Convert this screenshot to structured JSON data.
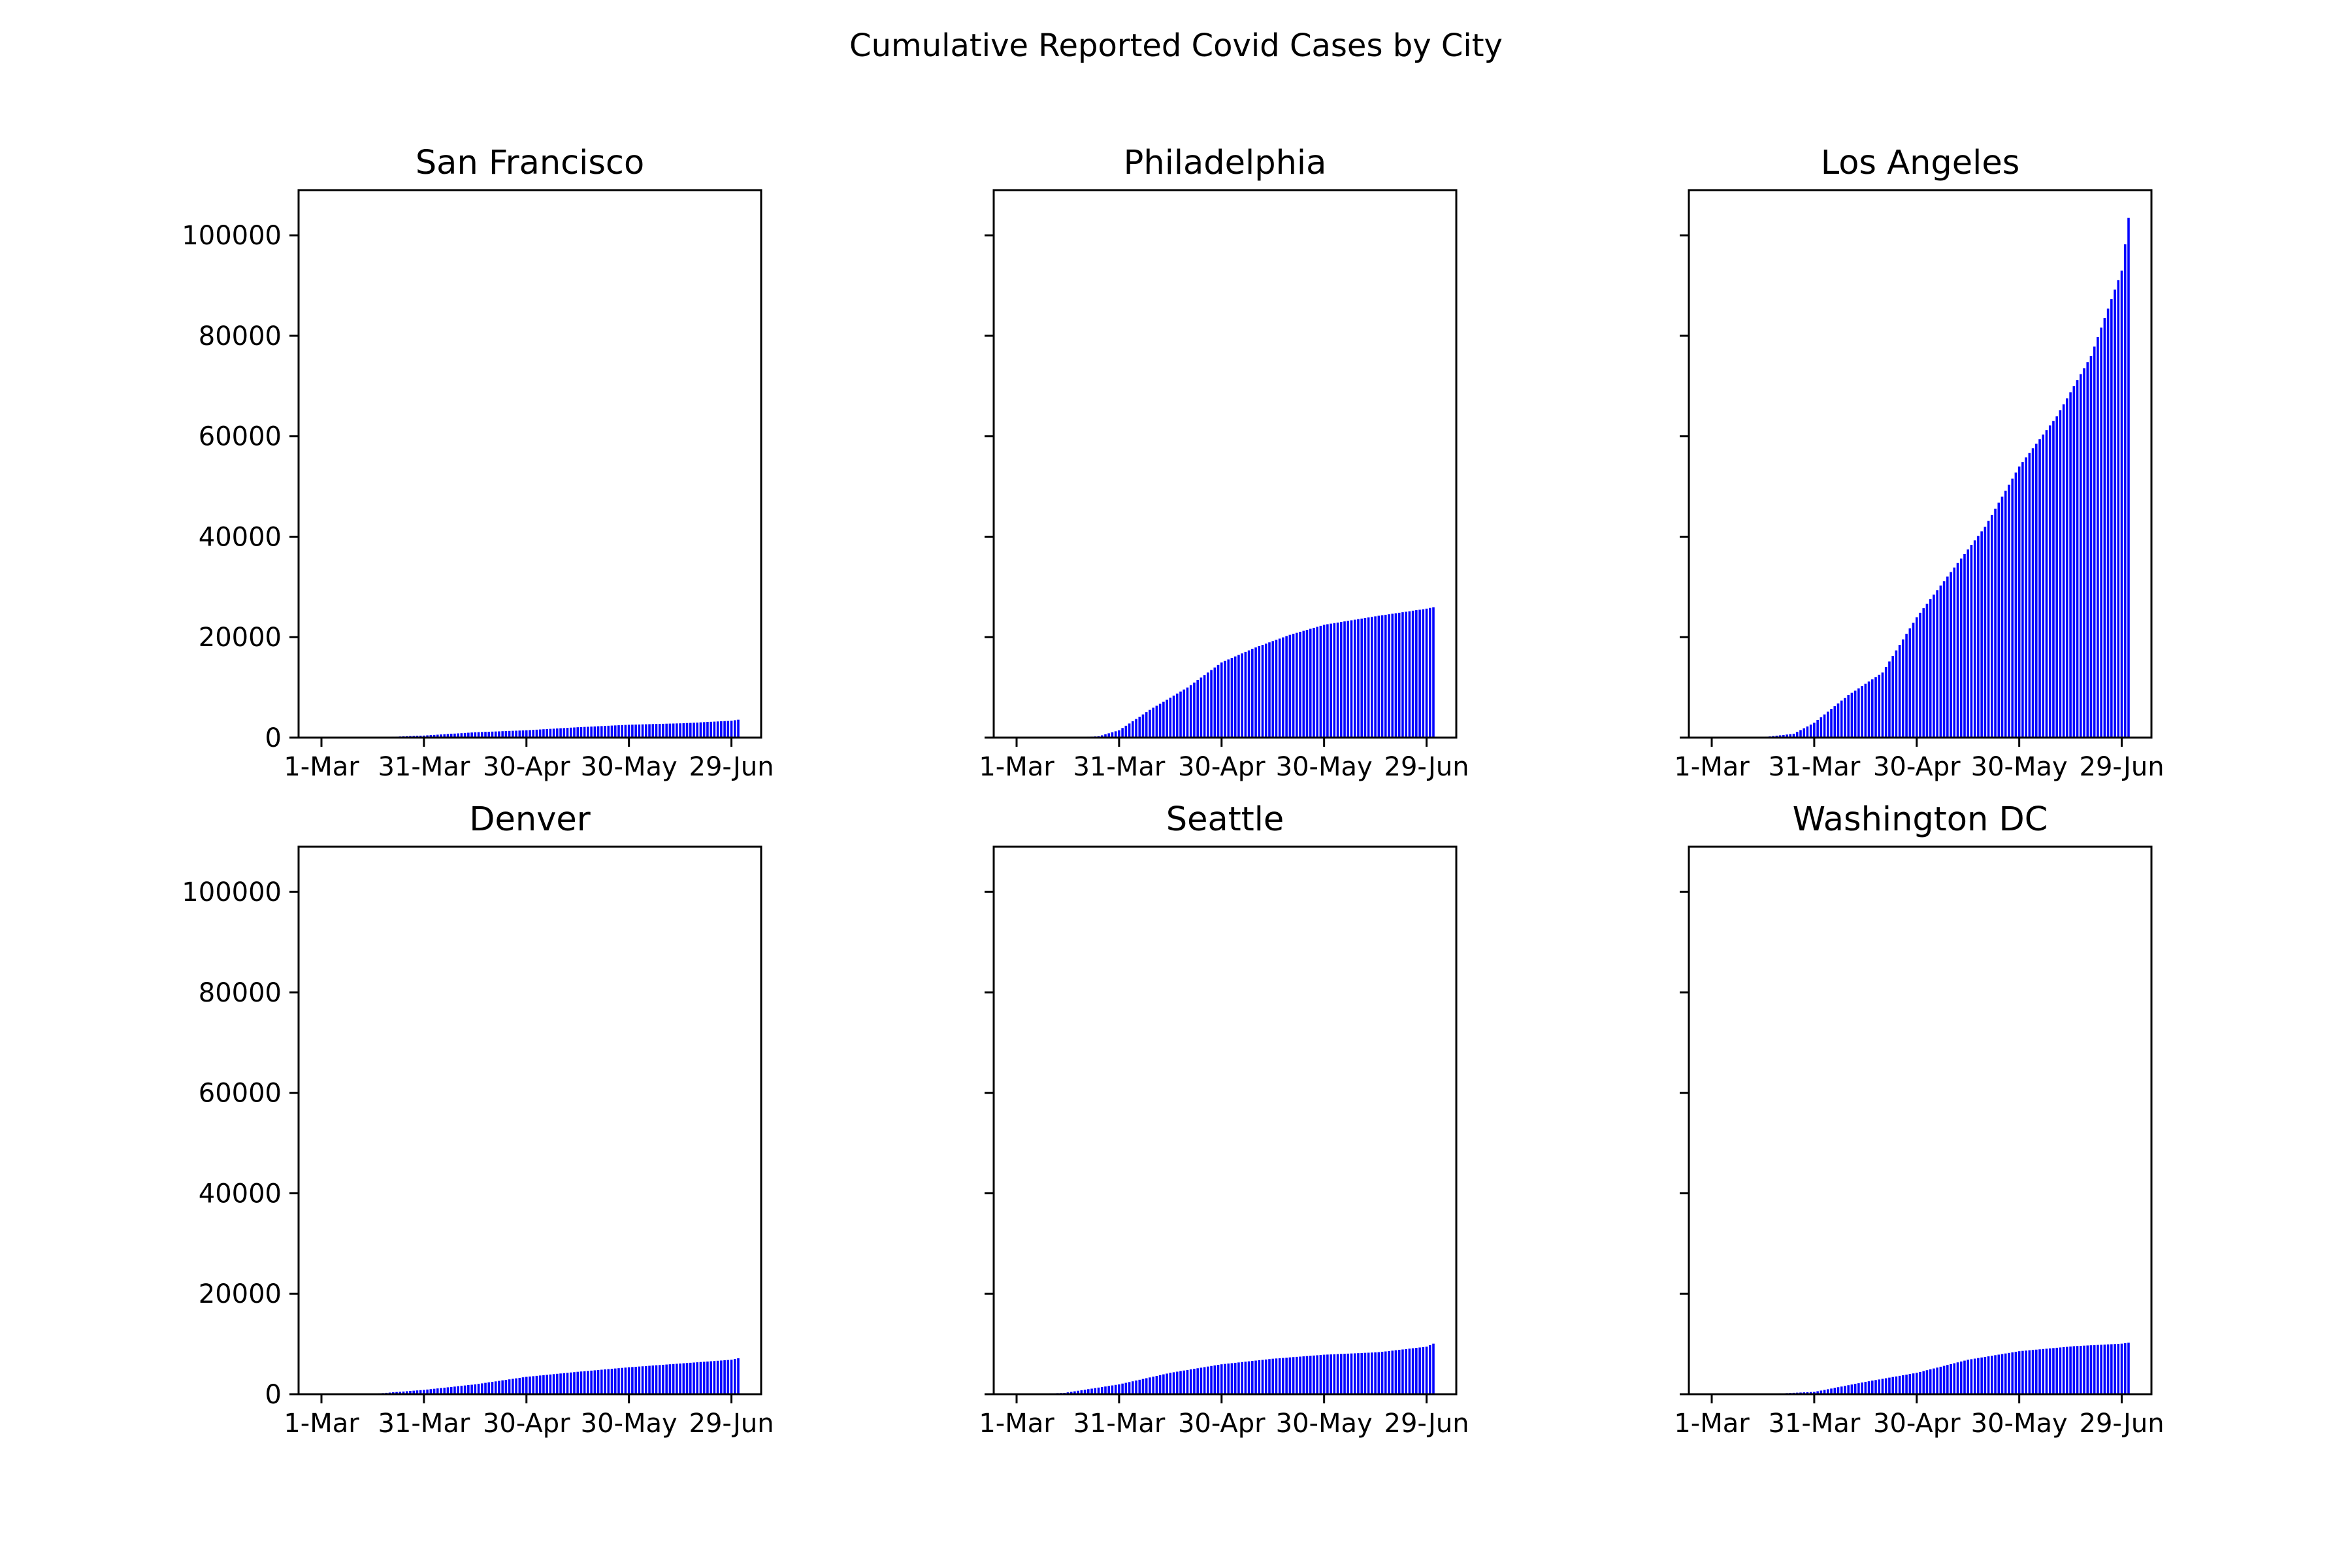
{
  "figure_title": "Cumulative Reported Covid Cases by City",
  "colors": {
    "bar_fill": "#0000ff",
    "bar_edge": "#ffffff",
    "axes": "#000000",
    "background": "#ffffff"
  },
  "chart_data": [
    {
      "type": "bar",
      "title": "San Francisco",
      "xlabel": "",
      "ylabel": "",
      "x_start": "2020-03-01",
      "x_end": "2020-07-01",
      "xticks": [
        "1-Mar",
        "31-Mar",
        "30-Apr",
        "30-May",
        "29-Jun"
      ],
      "yticks": [
        0,
        20000,
        40000,
        60000,
        80000,
        100000
      ],
      "ylim": [
        0,
        109000
      ],
      "grid": false,
      "series": [
        {
          "x": [
            "2020-03-01",
            "2020-03-15",
            "2020-03-31",
            "2020-04-15",
            "2020-04-30",
            "2020-05-15",
            "2020-05-30",
            "2020-06-15",
            "2020-06-29",
            "2020-07-01"
          ],
          "values": [
            0,
            30,
            450,
            1100,
            1500,
            2100,
            2600,
            2900,
            3400,
            3600
          ]
        }
      ]
    },
    {
      "type": "bar",
      "title": "Philadelphia",
      "xlabel": "",
      "ylabel": "",
      "x_start": "2020-03-01",
      "x_end": "2020-07-01",
      "xticks": [
        "1-Mar",
        "31-Mar",
        "30-Apr",
        "30-May",
        "29-Jun"
      ],
      "yticks": [
        0,
        20000,
        40000,
        60000,
        80000,
        100000
      ],
      "ylim": [
        0,
        109000
      ],
      "grid": false,
      "series": [
        {
          "x": [
            "2020-03-01",
            "2020-03-15",
            "2020-03-25",
            "2020-03-31",
            "2020-04-10",
            "2020-04-20",
            "2020-04-30",
            "2020-05-10",
            "2020-05-20",
            "2020-05-30",
            "2020-06-15",
            "2020-06-29",
            "2020-07-01"
          ],
          "values": [
            0,
            20,
            300,
            1500,
            6000,
            10000,
            15000,
            18000,
            20500,
            22500,
            24300,
            25700,
            26000
          ]
        }
      ]
    },
    {
      "type": "bar",
      "title": "Los Angeles",
      "xlabel": "",
      "ylabel": "",
      "x_start": "2020-03-01",
      "x_end": "2020-07-01",
      "xticks": [
        "1-Mar",
        "31-Mar",
        "30-Apr",
        "30-May",
        "29-Jun"
      ],
      "yticks": [
        0,
        20000,
        40000,
        60000,
        80000,
        100000
      ],
      "ylim": [
        0,
        109000
      ],
      "grid": false,
      "series": [
        {
          "x": [
            "2020-03-01",
            "2020-03-15",
            "2020-03-25",
            "2020-03-31",
            "2020-04-10",
            "2020-04-20",
            "2020-04-30",
            "2020-05-10",
            "2020-05-20",
            "2020-05-30",
            "2020-06-10",
            "2020-06-20",
            "2020-06-29",
            "2020-07-01"
          ],
          "values": [
            0,
            50,
            800,
            3000,
            8500,
            13000,
            24000,
            33000,
            42000,
            54000,
            64000,
            76000,
            93000,
            103500
          ]
        }
      ]
    },
    {
      "type": "bar",
      "title": "Denver",
      "xlabel": "",
      "ylabel": "",
      "x_start": "2020-03-01",
      "x_end": "2020-07-01",
      "xticks": [
        "1-Mar",
        "31-Mar",
        "30-Apr",
        "30-May",
        "29-Jun"
      ],
      "yticks": [
        0,
        20000,
        40000,
        60000,
        80000,
        100000
      ],
      "ylim": [
        0,
        109000
      ],
      "grid": false,
      "series": [
        {
          "x": [
            "2020-03-01",
            "2020-03-15",
            "2020-03-31",
            "2020-04-15",
            "2020-04-30",
            "2020-05-15",
            "2020-05-30",
            "2020-06-15",
            "2020-06-29",
            "2020-07-01"
          ],
          "values": [
            0,
            50,
            900,
            2000,
            3500,
            4500,
            5400,
            6200,
            6900,
            7200
          ]
        }
      ]
    },
    {
      "type": "bar",
      "title": "Seattle",
      "xlabel": "",
      "ylabel": "",
      "x_start": "2020-03-01",
      "x_end": "2020-07-01",
      "xticks": [
        "1-Mar",
        "31-Mar",
        "30-Apr",
        "30-May",
        "29-Jun"
      ],
      "yticks": [
        0,
        20000,
        40000,
        60000,
        80000,
        100000
      ],
      "ylim": [
        0,
        109000
      ],
      "grid": false,
      "series": [
        {
          "x": [
            "2020-03-01",
            "2020-03-15",
            "2020-03-31",
            "2020-04-15",
            "2020-04-30",
            "2020-05-15",
            "2020-05-30",
            "2020-06-15",
            "2020-06-29",
            "2020-07-01"
          ],
          "values": [
            0,
            300,
            2000,
            4300,
            6000,
            7100,
            7900,
            8400,
            9500,
            10100
          ]
        }
      ]
    },
    {
      "type": "bar",
      "title": "Washington DC",
      "xlabel": "",
      "ylabel": "",
      "x_start": "2020-03-01",
      "x_end": "2020-07-01",
      "xticks": [
        "1-Mar",
        "31-Mar",
        "30-Apr",
        "30-May",
        "29-Jun"
      ],
      "yticks": [
        0,
        20000,
        40000,
        60000,
        80000,
        100000
      ],
      "ylim": [
        0,
        109000
      ],
      "grid": false,
      "series": [
        {
          "x": [
            "2020-03-01",
            "2020-03-15",
            "2020-03-31",
            "2020-04-15",
            "2020-04-30",
            "2020-05-15",
            "2020-05-30",
            "2020-06-15",
            "2020-06-29",
            "2020-07-01"
          ],
          "values": [
            0,
            20,
            500,
            2500,
            4300,
            6900,
            8600,
            9600,
            10100,
            10300
          ]
        }
      ]
    }
  ]
}
